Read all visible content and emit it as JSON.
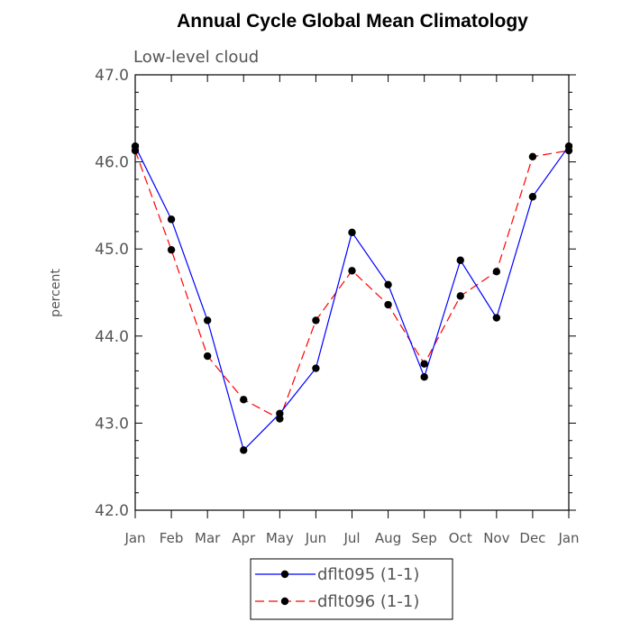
{
  "chart_data": {
    "type": "line",
    "title": "Annual Cycle Global Mean Climatology",
    "subtitle": "Low-level cloud",
    "xlabel": "",
    "ylabel": "percent",
    "ylim": [
      42.0,
      47.0
    ],
    "yticks": [
      "42.0",
      "43.0",
      "44.0",
      "45.0",
      "46.0",
      "47.0"
    ],
    "categories": [
      "Jan",
      "Feb",
      "Mar",
      "Apr",
      "May",
      "Jun",
      "Jul",
      "Aug",
      "Sep",
      "Oct",
      "Nov",
      "Dec",
      "Jan"
    ],
    "legend_position": "bottom",
    "series": [
      {
        "name": "dflt095 (1-1)",
        "color": "#0000ff",
        "dash": "solid",
        "values": [
          46.18,
          45.34,
          44.18,
          42.69,
          43.11,
          43.63,
          45.19,
          44.59,
          43.53,
          44.87,
          44.21,
          45.6,
          46.18
        ]
      },
      {
        "name": "dflt096 (1-1)",
        "color": "#ff0000",
        "dash": "dashed",
        "values": [
          46.13,
          44.99,
          43.77,
          43.27,
          43.05,
          44.18,
          44.75,
          44.36,
          43.68,
          44.46,
          44.74,
          46.06,
          46.13
        ]
      }
    ]
  }
}
